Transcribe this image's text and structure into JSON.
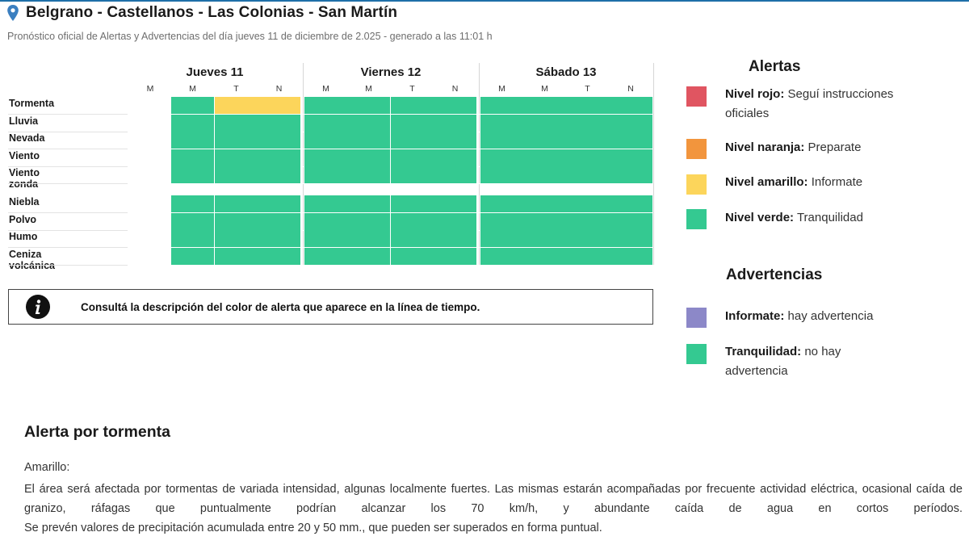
{
  "location": {
    "title": "Belgrano - Castellanos - Las Colonias - San Martín",
    "subtitle": "Pronóstico oficial de Alertas y Advertencias del día jueves 11 de diciembre de 2.025 - generado a las 11:01 h",
    "icon": "map-pin-icon"
  },
  "colors": {
    "rojo": "#e05561",
    "naranja": "#f2953d",
    "amarillo": "#fcd55b",
    "verde": "#34c991",
    "violeta": "#8c88c8",
    "empty": "#ffffff"
  },
  "timeline": {
    "days": [
      {
        "label": "Jueves 11",
        "segments": [
          "M",
          "M",
          "T",
          "N"
        ]
      },
      {
        "label": "Viernes 12",
        "segments": [
          "M",
          "M",
          "T",
          "N"
        ]
      },
      {
        "label": "Sábado 13",
        "segments": [
          "M",
          "M",
          "T",
          "N"
        ]
      }
    ],
    "rows": [
      {
        "label": "Tormenta",
        "group": 0,
        "levels": [
          "empty",
          "verde",
          "amarillo",
          "amarillo",
          "verde",
          "verde",
          "verde",
          "verde",
          "verde",
          "verde",
          "verde",
          "verde"
        ]
      },
      {
        "label": "Lluvia",
        "group": 0,
        "levels": [
          "empty",
          "verde",
          "verde",
          "verde",
          "verde",
          "verde",
          "verde",
          "verde",
          "verde",
          "verde",
          "verde",
          "verde"
        ]
      },
      {
        "label": "Nevada",
        "group": 0,
        "levels": [
          "empty",
          "verde",
          "verde",
          "verde",
          "verde",
          "verde",
          "verde",
          "verde",
          "verde",
          "verde",
          "verde",
          "verde"
        ]
      },
      {
        "label": "Viento",
        "group": 0,
        "levels": [
          "empty",
          "verde",
          "verde",
          "verde",
          "verde",
          "verde",
          "verde",
          "verde",
          "verde",
          "verde",
          "verde",
          "verde"
        ]
      },
      {
        "label": "Viento zonda",
        "group": 0,
        "levels": [
          "empty",
          "verde",
          "verde",
          "verde",
          "verde",
          "verde",
          "verde",
          "verde",
          "verde",
          "verde",
          "verde",
          "verde"
        ]
      },
      {
        "label": "Niebla",
        "group": 1,
        "levels": [
          "empty",
          "verde",
          "verde",
          "verde",
          "verde",
          "verde",
          "verde",
          "verde",
          "verde",
          "verde",
          "verde",
          "verde"
        ]
      },
      {
        "label": "Polvo",
        "group": 1,
        "levels": [
          "empty",
          "verde",
          "verde",
          "verde",
          "verde",
          "verde",
          "verde",
          "verde",
          "verde",
          "verde",
          "verde",
          "verde"
        ]
      },
      {
        "label": "Humo",
        "group": 1,
        "levels": [
          "empty",
          "verde",
          "verde",
          "verde",
          "verde",
          "verde",
          "verde",
          "verde",
          "verde",
          "verde",
          "verde",
          "verde"
        ]
      },
      {
        "label": "Ceniza volcánica",
        "group": 1,
        "levels": [
          "empty",
          "verde",
          "verde",
          "verde",
          "verde",
          "verde",
          "verde",
          "verde",
          "verde",
          "verde",
          "verde",
          "verde"
        ]
      }
    ]
  },
  "info": {
    "text": "Consultá la descripción del color de alerta que aparece en la línea de tiempo.",
    "icon": "info-icon"
  },
  "legend": {
    "alertas_title": "Alertas",
    "alertas": [
      {
        "color": "rojo",
        "bold": "Nivel rojo:",
        "text": " Seguí instrucciones oficiales"
      },
      {
        "color": "naranja",
        "bold": "Nivel naranja:",
        "text": " Preparate"
      },
      {
        "color": "amarillo",
        "bold": "Nivel amarillo:",
        "text": " Informate"
      },
      {
        "color": "verde",
        "bold": "Nivel verde:",
        "text": " Tranquilidad"
      }
    ],
    "advertencias_title": "Advertencias",
    "advertencias": [
      {
        "color": "violeta",
        "bold": "Informate:",
        "text": " hay advertencia"
      },
      {
        "color": "verde",
        "bold": "Tranquilidad:",
        "text": " no hay advertencia"
      }
    ]
  },
  "description": {
    "title": "Alerta por tormenta",
    "level": "Amarillo:",
    "paragraphs": [
      "El área será afectada por tormentas de variada intensidad, algunas localmente fuertes. Las mismas estarán acompañadas por frecuente actividad eléctrica, ocasional caída de granizo, ráfagas que puntualmente podrían alcanzar los 70 km/h, y abundante caída de agua en cortos períodos.",
      "Se prevén valores de precipitación acumulada entre 20 y 50 mm., que pueden ser superados en forma puntual."
    ]
  }
}
